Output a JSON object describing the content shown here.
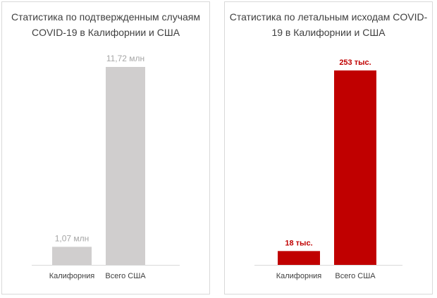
{
  "chart_data": [
    {
      "type": "bar",
      "title": "Статистика по подтвержденным случаям COVID-19 в Калифорнии и США",
      "categories": [
        "Калифорния",
        "Всего США"
      ],
      "values": [
        1.07,
        11.72
      ],
      "unit": "млн",
      "data_labels": [
        "1,07 млн",
        "11,72 млн"
      ],
      "bar_color": "#d0cece",
      "label_color": "#a6a6a6",
      "ylim": [
        0,
        11.72
      ],
      "grid": false,
      "legend": "none"
    },
    {
      "type": "bar",
      "title": "Статистика по летальным исходам COVID-19 в Калифорнии и США",
      "categories": [
        "Калифорния",
        "Всего США"
      ],
      "values": [
        18,
        253
      ],
      "unit": "тыс.",
      "data_labels": [
        "18 тыс.",
        "253 тыс."
      ],
      "bar_color": "#c00000",
      "label_color": "#c00000",
      "ylim": [
        0,
        253
      ],
      "grid": false,
      "legend": "none"
    }
  ]
}
